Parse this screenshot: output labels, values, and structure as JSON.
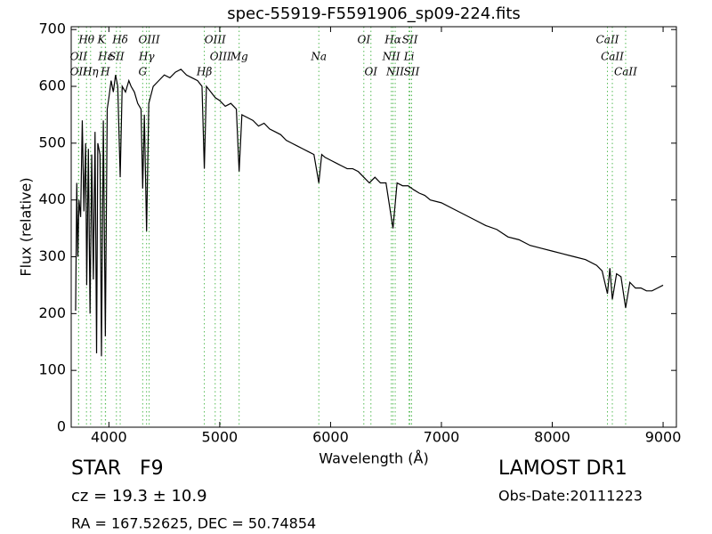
{
  "chart_data": {
    "type": "line",
    "title": "spec-55919-F5591906_sp09-224.fits",
    "x_label": "Wavelength (Å)",
    "y_label": "Flux (relative)",
    "xlim": [
      3660,
      9120
    ],
    "ylim": [
      0,
      705
    ],
    "xticks": [
      4000,
      5000,
      6000,
      7000,
      8000,
      9000
    ],
    "yticks": [
      0,
      100,
      200,
      300,
      400,
      500,
      600,
      700
    ],
    "x": [
      3700,
      3710,
      3720,
      3730,
      3745,
      3760,
      3775,
      3790,
      3800,
      3815,
      3830,
      3845,
      3860,
      3875,
      3889,
      3900,
      3920,
      3933,
      3950,
      3968,
      3985,
      4000,
      4020,
      4040,
      4060,
      4080,
      4102,
      4120,
      4150,
      4180,
      4200,
      4230,
      4260,
      4290,
      4305,
      4320,
      4340,
      4360,
      4400,
      4450,
      4500,
      4550,
      4600,
      4650,
      4700,
      4750,
      4800,
      4840,
      4861,
      4880,
      4920,
      4960,
      5000,
      5050,
      5100,
      5150,
      5175,
      5200,
      5250,
      5300,
      5350,
      5400,
      5450,
      5500,
      5550,
      5600,
      5650,
      5700,
      5750,
      5800,
      5850,
      5894,
      5920,
      5950,
      6000,
      6050,
      6100,
      6150,
      6200,
      6250,
      6300,
      6350,
      6400,
      6450,
      6500,
      6563,
      6600,
      6650,
      6700,
      6750,
      6800,
      6850,
      6900,
      7000,
      7100,
      7200,
      7300,
      7400,
      7500,
      7600,
      7700,
      7800,
      7900,
      8000,
      8100,
      8200,
      8300,
      8400,
      8450,
      8498,
      8520,
      8542,
      8580,
      8620,
      8662,
      8700,
      8750,
      8800,
      8850,
      8900,
      8950,
      9000
    ],
    "series": [
      {
        "color": "#000000",
        "values": [
          205,
          430,
          300,
          400,
          370,
          540,
          380,
          500,
          250,
          490,
          200,
          480,
          260,
          520,
          130,
          500,
          480,
          125,
          540,
          160,
          560,
          580,
          610,
          590,
          620,
          600,
          440,
          600,
          590,
          610,
          600,
          590,
          570,
          560,
          420,
          550,
          345,
          570,
          600,
          610,
          620,
          615,
          625,
          630,
          620,
          615,
          610,
          600,
          455,
          600,
          590,
          580,
          575,
          565,
          570,
          560,
          450,
          550,
          545,
          540,
          530,
          535,
          525,
          520,
          515,
          505,
          500,
          495,
          490,
          485,
          480,
          430,
          480,
          475,
          470,
          465,
          460,
          455,
          455,
          450,
          440,
          430,
          440,
          430,
          430,
          350,
          430,
          425,
          425,
          418,
          412,
          408,
          400,
          395,
          385,
          375,
          365,
          355,
          348,
          335,
          330,
          320,
          315,
          310,
          305,
          300,
          295,
          285,
          275,
          235,
          280,
          225,
          270,
          265,
          210,
          255,
          245,
          245,
          240,
          240,
          245,
          250
        ]
      }
    ],
    "spectral_lines": {
      "color": "#55bb55",
      "rows": [
        [
          {
            "x": 3798,
            "label": "Hθ"
          },
          {
            "x": 3933,
            "label": "K"
          },
          {
            "x": 4102,
            "label": "Hδ"
          },
          {
            "x": 4363,
            "label": "OIII"
          },
          {
            "x": 4959,
            "label": "OIII"
          },
          {
            "x": 6300,
            "label": "OI"
          },
          {
            "x": 6563,
            "label": "Hα"
          },
          {
            "x": 6716,
            "label": "SII"
          },
          {
            "x": 8498,
            "label": "CaII"
          }
        ],
        [
          {
            "x": 3727,
            "label": "OII"
          },
          {
            "x": 3970,
            "label": "Hε"
          },
          {
            "x": 4068,
            "label": "SII"
          },
          {
            "x": 4340,
            "label": "Hγ"
          },
          {
            "x": 5007,
            "label": "OIII"
          },
          {
            "x": 5175,
            "label": "Mg"
          },
          {
            "x": 5894,
            "label": "Na"
          },
          {
            "x": 6548,
            "label": "NII"
          },
          {
            "x": 6708,
            "label": "Li"
          },
          {
            "x": 8542,
            "label": "CaII"
          }
        ],
        [
          {
            "x": 3727,
            "label": "OII"
          },
          {
            "x": 3835,
            "label": "Hη"
          },
          {
            "x": 3968,
            "label": "H"
          },
          {
            "x": 4305,
            "label": "G"
          },
          {
            "x": 4861,
            "label": "Hβ"
          },
          {
            "x": 6364,
            "label": "OI"
          },
          {
            "x": 6583,
            "label": "NII"
          },
          {
            "x": 6731,
            "label": "SII"
          },
          {
            "x": 8662,
            "label": "CaII"
          }
        ]
      ]
    }
  },
  "info": {
    "classification": "STAR   F9",
    "redshift": "cz = 19.3 ± 10.9",
    "coordinates": "RA = 167.52625, DEC = 50.74854",
    "survey": "LAMOST DR1",
    "obs_date": "Obs-Date:20111223"
  }
}
